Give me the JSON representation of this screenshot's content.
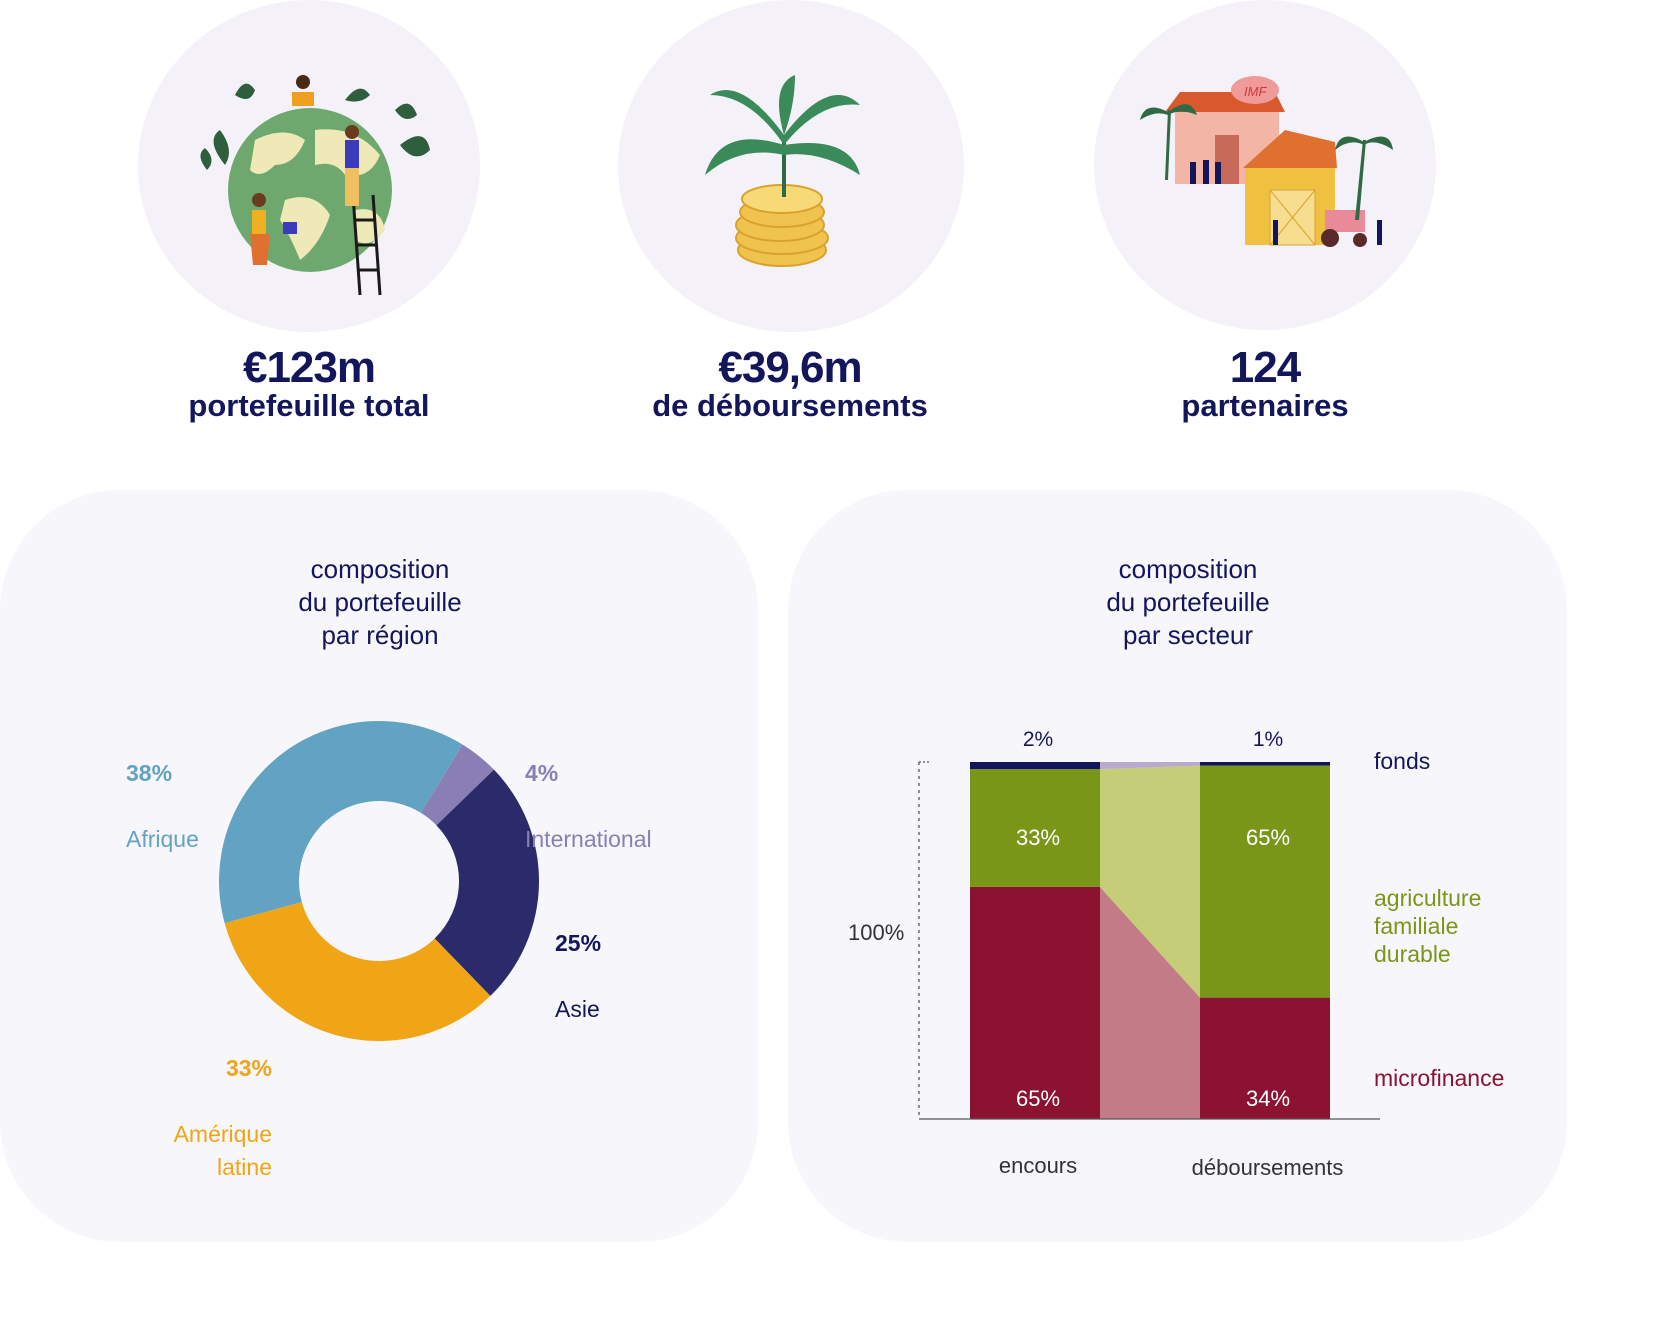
{
  "kpis": [
    {
      "value": "€123m",
      "label": "portefeuille total",
      "icon": "globe-planting-icon"
    },
    {
      "value": "€39,6m",
      "label": "de déboursements",
      "icon": "plant-coins-icon"
    },
    {
      "value": "124",
      "label": "partenaires",
      "icon": "imf-farm-icon",
      "icon_text": "IMF"
    }
  ],
  "colors": {
    "navy": "#14165c",
    "afrique": "#62a3c4",
    "international": "#8a7fb5",
    "asie": "#2b2b6b",
    "amerique": "#f0a516",
    "agri": "#7a9619",
    "agri_light": "#c6cd78",
    "micro": "#8b1230",
    "micro_light": "#c47b88",
    "fonds": "#14165c",
    "fonds_light": "#b8a9cf",
    "panel": "#f7f6fa"
  },
  "region_chart": {
    "title": "composition\ndu portefeuille\npar région"
  },
  "sector_chart": {
    "title": "composition\ndu portefeuille\npar secteur",
    "y_label": "100%"
  },
  "chart_data": [
    {
      "type": "pie",
      "title": "composition du portefeuille par région",
      "donut": true,
      "slices": [
        {
          "name": "Afrique",
          "value": 38,
          "label": "38%",
          "color": "#62a3c4"
        },
        {
          "name": "International",
          "value": 4,
          "label": "4%",
          "color": "#8a7fb5"
        },
        {
          "name": "Asie",
          "value": 25,
          "label": "25%",
          "color": "#2b2b6b"
        },
        {
          "name": "Amérique\nlatine",
          "value": 33,
          "label": "33%",
          "color": "#f0a516"
        }
      ]
    },
    {
      "type": "bar",
      "stacked": true,
      "title": "composition du portefeuille par secteur",
      "categories": [
        "encours",
        "déboursements"
      ],
      "ylim": [
        0,
        100
      ],
      "ylabel": "100%",
      "series": [
        {
          "name": "microfinance",
          "values": [
            65,
            34
          ],
          "labels": [
            "65%",
            "34%"
          ],
          "color": "#8b1230"
        },
        {
          "name": "agriculture\nfamiliale\ndurable",
          "values": [
            33,
            65
          ],
          "labels": [
            "33%",
            "65%"
          ],
          "color": "#7a9619"
        },
        {
          "name": "fonds",
          "values": [
            2,
            1
          ],
          "labels": [
            "2%",
            "1%"
          ],
          "color": "#14165c"
        }
      ]
    }
  ]
}
